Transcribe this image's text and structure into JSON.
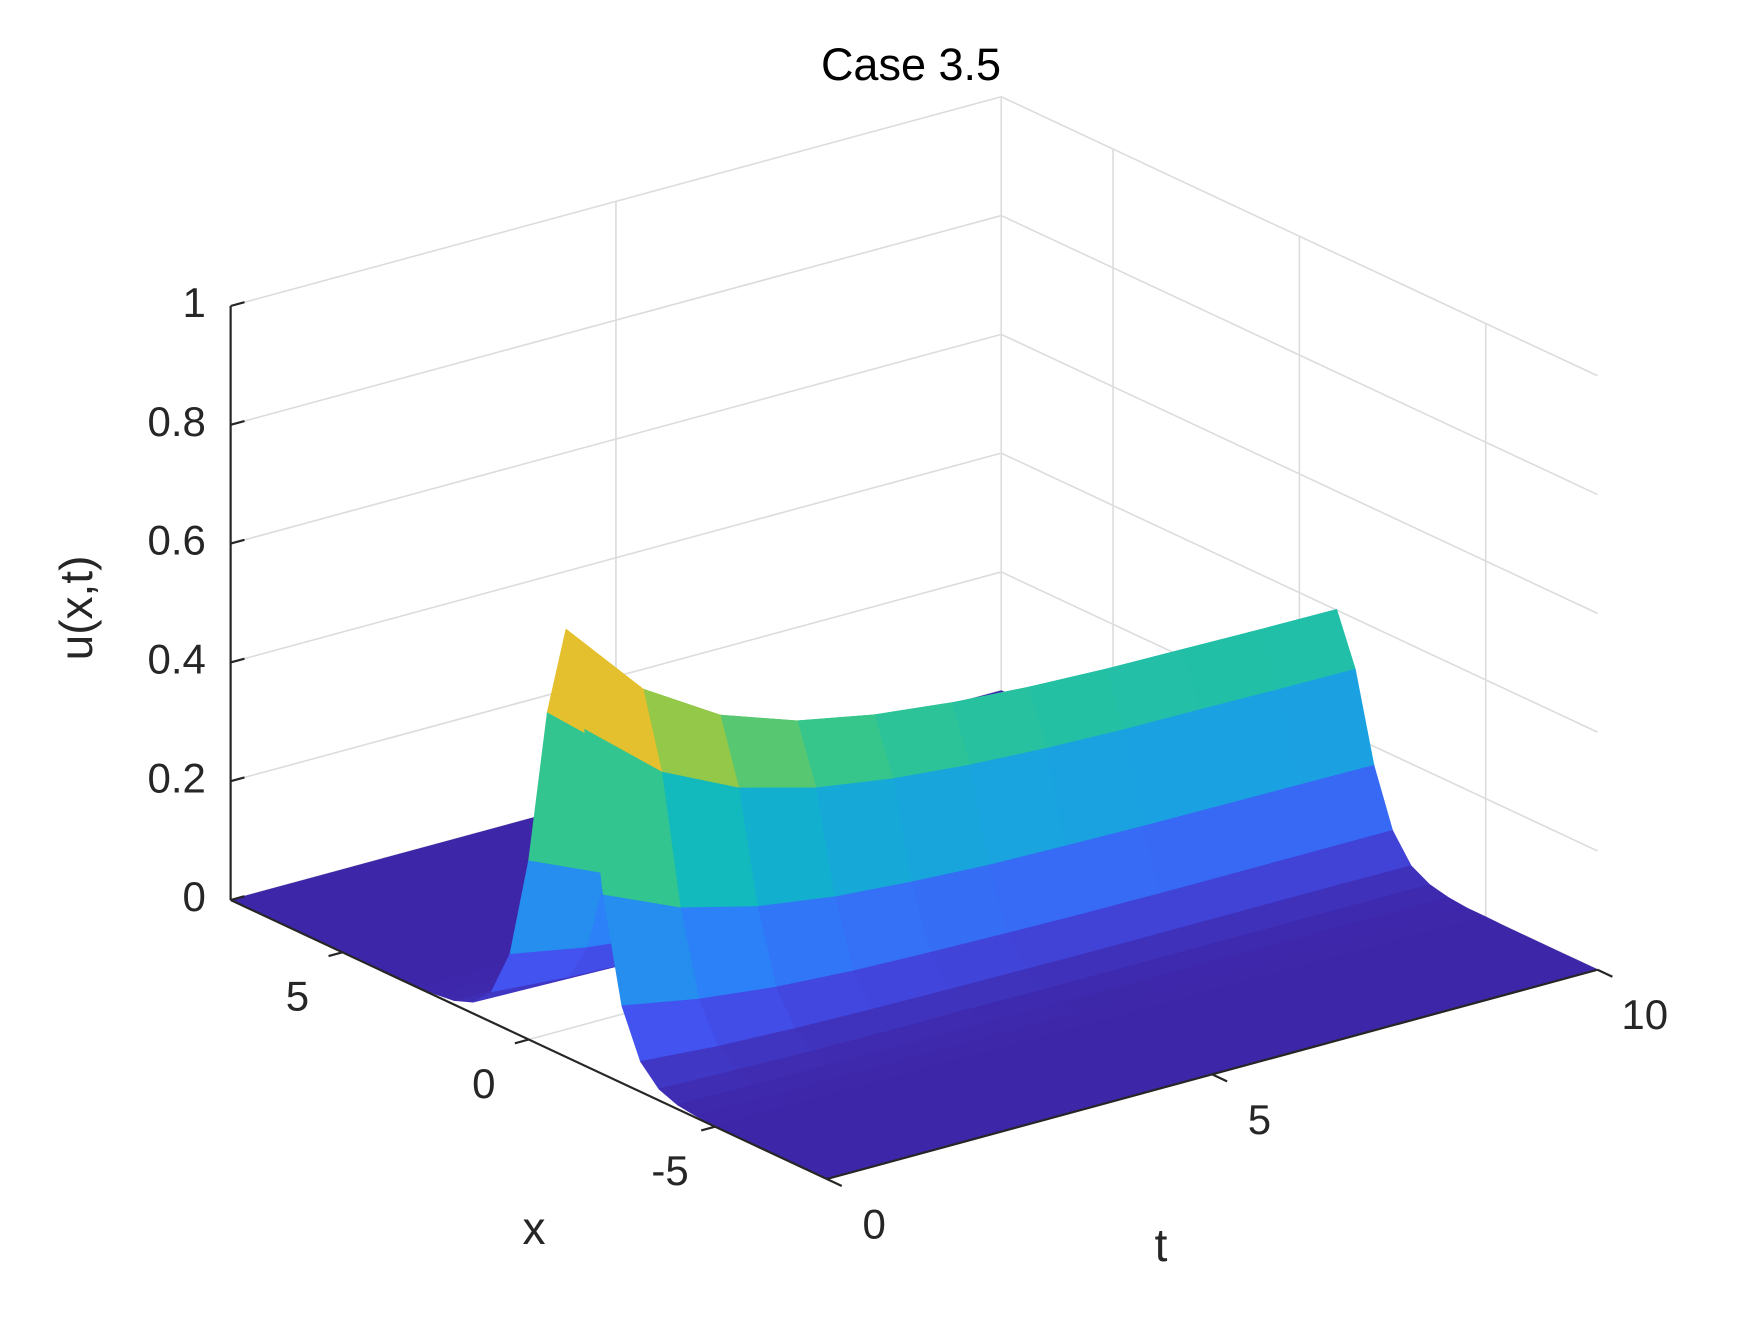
{
  "chart_data": {
    "type": "surface",
    "title": "Case 3.5",
    "x_label": "x",
    "t_label": "t",
    "z_label": "u(x,t)",
    "xlim": [
      -8,
      8
    ],
    "tlim": [
      0,
      10
    ],
    "zlim": [
      0,
      1
    ],
    "xticks": [
      -5,
      0,
      5
    ],
    "tticks": [
      0,
      5,
      10
    ],
    "zticks": [
      0,
      0.2,
      0.4,
      0.6,
      0.8,
      1
    ],
    "grid": true,
    "colormap": [
      "#3e26a8",
      "#4352f0",
      "#2d7ff9",
      "#1ba0e3",
      "#0eb8c3",
      "#36c68b",
      "#8dc94a",
      "#dcbd2b",
      "#fcc636",
      "#f9fb15"
    ],
    "x": [
      -8,
      -7.5,
      -7,
      -6.5,
      -6,
      -5.5,
      -5,
      -4.5,
      -4,
      -3.5,
      -3,
      -2.5,
      -2,
      -1.5,
      -1,
      -0.5,
      0,
      0.5,
      1,
      1.5,
      2,
      2.5,
      3,
      3.5,
      4,
      4.5,
      5,
      5.5,
      6,
      6.5,
      7,
      7.5,
      8
    ],
    "t": [
      0,
      1,
      2,
      3,
      4,
      5,
      6,
      7,
      8,
      9,
      10
    ],
    "z": [
      [
        0,
        0,
        0,
        0,
        0,
        0,
        0.001,
        0.003,
        0.007,
        0.019,
        0.051,
        0.13,
        0.302,
        0.566,
        0.72,
        0.566,
        0.302,
        0.13,
        0.051,
        0.019,
        0.007,
        0.003,
        0.001,
        0,
        0,
        0,
        0,
        0,
        0,
        0,
        0,
        0,
        0
      ],
      [
        0,
        0,
        0,
        0,
        0,
        0,
        0.001,
        0.002,
        0.006,
        0.016,
        0.041,
        0.106,
        0.245,
        0.459,
        0.584,
        0.459,
        0.245,
        0.106,
        0.041,
        0.016,
        0.006,
        0.002,
        0.001,
        0,
        0,
        0,
        0,
        0,
        0,
        0,
        0,
        0,
        0
      ],
      [
        0,
        0,
        0,
        0,
        0,
        0,
        0.001,
        0.002,
        0.005,
        0.013,
        0.036,
        0.091,
        0.212,
        0.397,
        0.505,
        0.397,
        0.212,
        0.091,
        0.036,
        0.013,
        0.005,
        0.002,
        0.001,
        0,
        0,
        0,
        0,
        0,
        0,
        0,
        0,
        0,
        0
      ],
      [
        0,
        0,
        0,
        0,
        0,
        0,
        0.001,
        0.002,
        0.005,
        0.012,
        0.033,
        0.083,
        0.193,
        0.362,
        0.46,
        0.362,
        0.193,
        0.083,
        0.033,
        0.012,
        0.005,
        0.002,
        0.001,
        0,
        0,
        0,
        0,
        0,
        0,
        0,
        0,
        0,
        0
      ],
      [
        0,
        0,
        0,
        0,
        0,
        0,
        0.001,
        0.002,
        0.004,
        0.012,
        0.031,
        0.079,
        0.183,
        0.342,
        0.435,
        0.342,
        0.183,
        0.079,
        0.031,
        0.012,
        0.004,
        0.002,
        0.001,
        0,
        0,
        0,
        0,
        0,
        0,
        0,
        0,
        0,
        0
      ],
      [
        0,
        0,
        0,
        0,
        0,
        0,
        0.001,
        0.002,
        0.004,
        0.011,
        0.03,
        0.076,
        0.176,
        0.33,
        0.42,
        0.33,
        0.176,
        0.076,
        0.03,
        0.011,
        0.004,
        0.002,
        0.001,
        0,
        0,
        0,
        0,
        0,
        0,
        0,
        0,
        0,
        0
      ],
      [
        0,
        0,
        0,
        0,
        0,
        0,
        0.001,
        0.001,
        0.004,
        0.011,
        0.029,
        0.074,
        0.173,
        0.323,
        0.411,
        0.323,
        0.173,
        0.074,
        0.029,
        0.011,
        0.004,
        0.001,
        0.001,
        0,
        0,
        0,
        0,
        0,
        0,
        0,
        0,
        0,
        0
      ],
      [
        0,
        0,
        0,
        0,
        0,
        0,
        0.001,
        0.001,
        0.004,
        0.011,
        0.029,
        0.073,
        0.171,
        0.319,
        0.406,
        0.319,
        0.171,
        0.073,
        0.029,
        0.011,
        0.004,
        0.001,
        0.001,
        0,
        0,
        0,
        0,
        0,
        0,
        0,
        0,
        0,
        0
      ],
      [
        0,
        0,
        0,
        0,
        0,
        0,
        0.001,
        0.001,
        0.004,
        0.011,
        0.029,
        0.073,
        0.17,
        0.318,
        0.404,
        0.318,
        0.17,
        0.073,
        0.029,
        0.011,
        0.004,
        0.001,
        0.001,
        0,
        0,
        0,
        0,
        0,
        0,
        0,
        0,
        0,
        0
      ],
      [
        0,
        0,
        0,
        0,
        0,
        0,
        0.001,
        0.001,
        0.004,
        0.011,
        0.029,
        0.073,
        0.169,
        0.316,
        0.402,
        0.316,
        0.169,
        0.073,
        0.029,
        0.011,
        0.004,
        0.001,
        0.001,
        0,
        0,
        0,
        0,
        0,
        0,
        0,
        0,
        0,
        0
      ],
      [
        0,
        0,
        0,
        0,
        0,
        0,
        0.001,
        0.001,
        0.004,
        0.011,
        0.028,
        0.073,
        0.168,
        0.315,
        0.401,
        0.315,
        0.168,
        0.073,
        0.028,
        0.011,
        0.004,
        0.001,
        0.001,
        0,
        0,
        0,
        0,
        0,
        0,
        0,
        0,
        0,
        0
      ]
    ]
  }
}
